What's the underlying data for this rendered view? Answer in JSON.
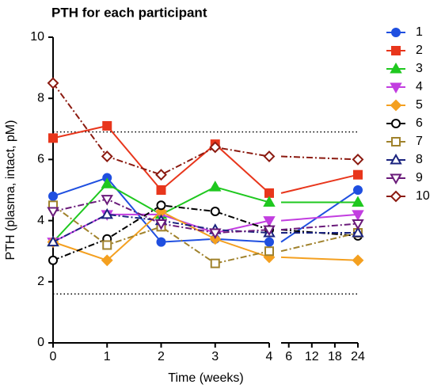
{
  "chart_data": {
    "type": "line",
    "title": "PTH for each participant",
    "xlabel": "Time (weeks)",
    "ylabel": "PTH (plasma, intact, pM)",
    "x": [
      0,
      1,
      2,
      3,
      4,
      24
    ],
    "xlim": [
      [
        0,
        4
      ],
      [
        4,
        24
      ]
    ],
    "xticks": [
      [
        0,
        1,
        2,
        3,
        4
      ],
      [
        6,
        12,
        18,
        24
      ]
    ],
    "ylim": [
      0,
      10
    ],
    "yticks": [
      0,
      2,
      4,
      6,
      8,
      10
    ],
    "reference_lines": [
      6.9,
      1.6
    ],
    "series": [
      {
        "name": "1",
        "color": "#1f4fe0",
        "marker": "circle",
        "filled": true,
        "dashed": false,
        "values": [
          4.8,
          5.4,
          3.3,
          3.4,
          3.3,
          5.0
        ]
      },
      {
        "name": "2",
        "color": "#e8361c",
        "marker": "square",
        "filled": true,
        "dashed": false,
        "values": [
          6.7,
          7.1,
          5.0,
          6.5,
          4.9,
          5.5
        ]
      },
      {
        "name": "3",
        "color": "#1fc81f",
        "marker": "triangle",
        "filled": true,
        "dashed": false,
        "values": [
          3.3,
          5.2,
          4.2,
          5.1,
          4.6,
          4.6
        ]
      },
      {
        "name": "4",
        "color": "#c23ee0",
        "marker": "triangle-down",
        "filled": true,
        "dashed": false,
        "values": [
          3.3,
          4.2,
          4.2,
          3.6,
          4.0,
          4.2
        ]
      },
      {
        "name": "5",
        "color": "#f4a020",
        "marker": "diamond",
        "filled": true,
        "dashed": false,
        "values": [
          3.3,
          2.7,
          4.3,
          3.4,
          2.8,
          2.7
        ]
      },
      {
        "name": "6",
        "color": "#000000",
        "marker": "circle",
        "filled": false,
        "dashed": true,
        "values": [
          2.7,
          3.4,
          4.5,
          4.3,
          3.7,
          3.5
        ]
      },
      {
        "name": "7",
        "color": "#a0822c",
        "marker": "square",
        "filled": false,
        "dashed": true,
        "values": [
          4.5,
          3.2,
          3.8,
          2.6,
          3.0,
          3.6
        ]
      },
      {
        "name": "8",
        "color": "#1a237e",
        "marker": "triangle",
        "filled": false,
        "dashed": true,
        "values": [
          3.3,
          4.2,
          4.0,
          3.7,
          3.6,
          3.6
        ]
      },
      {
        "name": "9",
        "color": "#6a1b7a",
        "marker": "triangle-down",
        "filled": false,
        "dashed": true,
        "values": [
          4.3,
          4.7,
          3.9,
          3.6,
          3.7,
          3.9
        ]
      },
      {
        "name": "10",
        "color": "#8b1a10",
        "marker": "diamond",
        "filled": false,
        "dashed": true,
        "values": [
          8.5,
          6.1,
          5.5,
          6.4,
          6.1,
          6.0
        ]
      }
    ]
  }
}
